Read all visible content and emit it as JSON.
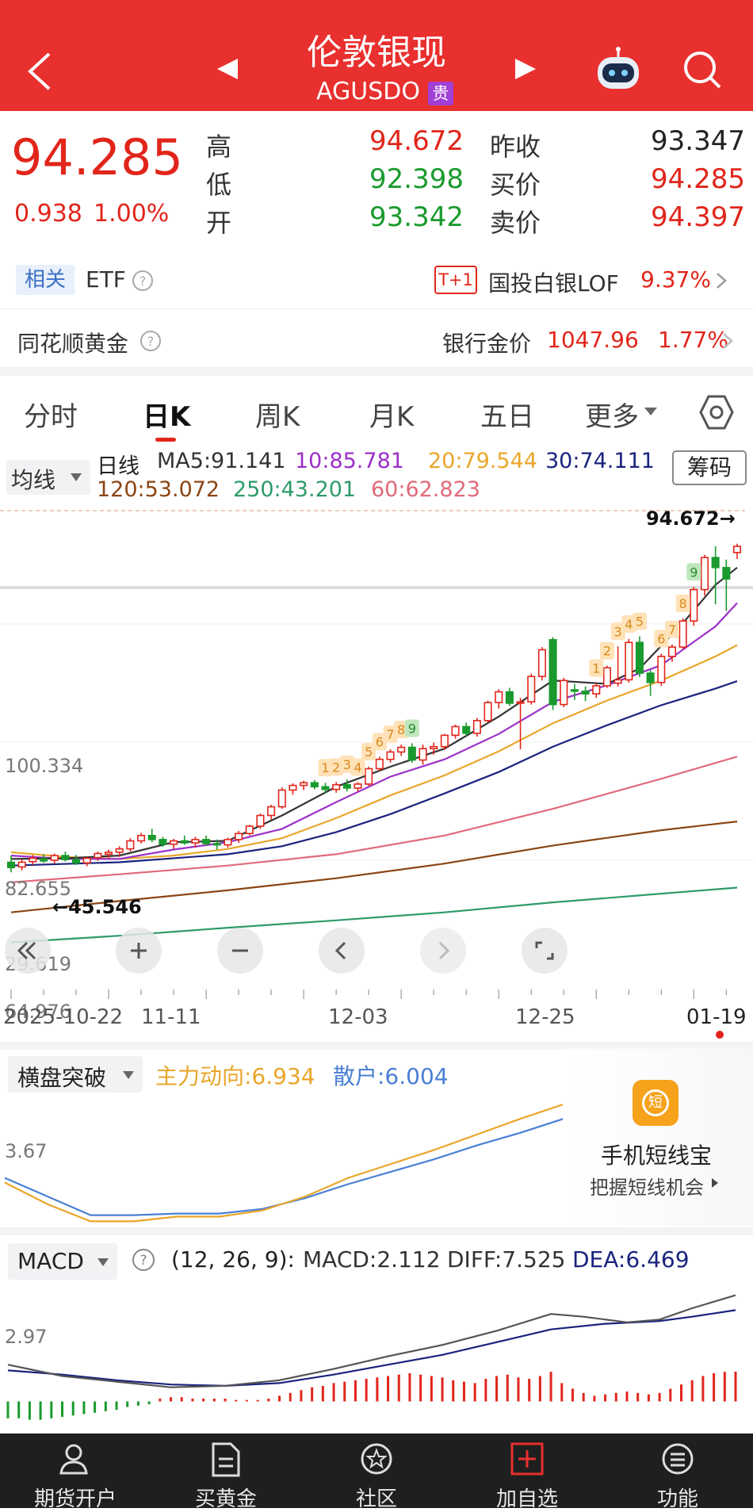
{
  "header": {
    "title": "伦敦银现",
    "code": "AGUSDO",
    "badge": "贵",
    "colors": {
      "bg": "#e8302e",
      "badge": "#a23fd6"
    }
  },
  "quote": {
    "price": "94.285",
    "change": "0.938",
    "change_pct": "1.00%",
    "labels": {
      "high": "高",
      "low": "低",
      "open": "开",
      "prev_close": "昨收",
      "bid": "买价",
      "ask": "卖价"
    },
    "high": "94.672",
    "low": "92.398",
    "open": "93.342",
    "prev_close": "93.347",
    "bid": "94.285",
    "ask": "94.397",
    "colors": {
      "up": "#e1251b",
      "down": "#1a9a2e"
    }
  },
  "related": {
    "tag": "相关",
    "etf": "ETF",
    "t1": "T+1",
    "fund_name": "国投白银LOF",
    "fund_pct": "9.37%"
  },
  "gold": {
    "label": "同花顺黄金",
    "bank_label": "银行金价",
    "bank_price": "1047.96",
    "bank_pct": "1.77%"
  },
  "tabs": [
    "分时",
    "日K",
    "周K",
    "月K",
    "五日",
    "更多"
  ],
  "kchart": {
    "ma_toggle": "均线",
    "period_label": "日线",
    "chip_button": "筹码",
    "ma": [
      {
        "label": "MA5:91.141",
        "color": "#333333"
      },
      {
        "label": "10:85.781",
        "color": "#9b30c8"
      },
      {
        "label": "20:79.544",
        "color": "#e9a62a"
      },
      {
        "label": "30:74.111",
        "color": "#1a237e"
      },
      {
        "label": "120:53.072",
        "color": "#8b4513"
      },
      {
        "label": "250:43.201",
        "color": "#2e9b6a"
      },
      {
        "label": "60:62.823",
        "color": "#e06a7a"
      }
    ],
    "y_labels": [
      "100.334",
      "82.655",
      "64.976",
      "29.619"
    ],
    "high_marker": "94.672→",
    "low_marker": "←45.546",
    "x_labels": [
      "2025-10-22",
      "11-11",
      "12-03",
      "12-25",
      "01-19"
    ]
  },
  "indicator": {
    "name": "横盘突破",
    "main_label": "主力动向:6.934",
    "retail_label": "散户:6.004",
    "y_label": "3.67",
    "promo_title": "手机短线宝",
    "promo_sub": "把握短线机会",
    "promo_icon": "短"
  },
  "macd": {
    "name": "MACD",
    "params": "(12, 26, 9):",
    "macd_val": "MACD:2.112",
    "diff_val": "DIFF:7.525",
    "dea_val": "DEA:6.469",
    "y_label": "2.97"
  },
  "nav": [
    "期货开户",
    "买黄金",
    "社区",
    "加自选",
    "功能"
  ],
  "chart_data": {
    "type": "candlestick",
    "title": "伦敦银现 日线",
    "xlabel": "",
    "ylabel": "",
    "x_ticks": [
      "2025-10-22",
      "11-11",
      "12-03",
      "12-25",
      "01-19"
    ],
    "ylim": [
      29.619,
      100.334
    ],
    "candles": [
      {
        "o": 47.0,
        "h": 48.0,
        "l": 45.5,
        "c": 46.2
      },
      {
        "o": 46.3,
        "h": 47.4,
        "l": 45.8,
        "c": 47.0
      },
      {
        "o": 47.1,
        "h": 48.1,
        "l": 46.6,
        "c": 47.6
      },
      {
        "o": 47.5,
        "h": 48.2,
        "l": 46.9,
        "c": 47.2
      },
      {
        "o": 47.3,
        "h": 48.3,
        "l": 46.8,
        "c": 48.0
      },
      {
        "o": 48.0,
        "h": 48.6,
        "l": 47.1,
        "c": 47.4
      },
      {
        "o": 47.4,
        "h": 48.1,
        "l": 46.6,
        "c": 46.9
      },
      {
        "o": 46.9,
        "h": 47.8,
        "l": 46.4,
        "c": 47.6
      },
      {
        "o": 47.7,
        "h": 48.6,
        "l": 47.2,
        "c": 48.3
      },
      {
        "o": 48.2,
        "h": 48.9,
        "l": 47.6,
        "c": 48.5
      },
      {
        "o": 48.5,
        "h": 49.4,
        "l": 47.8,
        "c": 49.0
      },
      {
        "o": 49.0,
        "h": 50.6,
        "l": 48.6,
        "c": 50.2
      },
      {
        "o": 50.2,
        "h": 51.4,
        "l": 49.8,
        "c": 51.0
      },
      {
        "o": 51.0,
        "h": 52.0,
        "l": 50.0,
        "c": 50.4
      },
      {
        "o": 50.4,
        "h": 50.8,
        "l": 49.3,
        "c": 49.7
      },
      {
        "o": 49.7,
        "h": 50.5,
        "l": 49.0,
        "c": 50.2
      },
      {
        "o": 50.2,
        "h": 51.0,
        "l": 49.6,
        "c": 49.9
      },
      {
        "o": 49.9,
        "h": 50.8,
        "l": 49.2,
        "c": 50.4
      },
      {
        "o": 50.4,
        "h": 51.0,
        "l": 49.5,
        "c": 49.8
      },
      {
        "o": 49.8,
        "h": 50.4,
        "l": 48.9,
        "c": 49.6
      },
      {
        "o": 49.6,
        "h": 50.7,
        "l": 49.2,
        "c": 50.4
      },
      {
        "o": 50.4,
        "h": 51.7,
        "l": 49.9,
        "c": 51.3
      },
      {
        "o": 51.3,
        "h": 52.6,
        "l": 51.0,
        "c": 52.4
      },
      {
        "o": 52.4,
        "h": 54.3,
        "l": 52.0,
        "c": 54.0
      },
      {
        "o": 54.0,
        "h": 55.6,
        "l": 53.4,
        "c": 55.3
      },
      {
        "o": 55.3,
        "h": 58.2,
        "l": 55.0,
        "c": 57.8
      },
      {
        "o": 57.8,
        "h": 58.8,
        "l": 57.1,
        "c": 58.5
      },
      {
        "o": 58.5,
        "h": 59.2,
        "l": 57.8,
        "c": 58.9
      },
      {
        "o": 58.9,
        "h": 59.3,
        "l": 57.9,
        "c": 58.3
      },
      {
        "o": 58.3,
        "h": 58.9,
        "l": 57.3,
        "c": 57.9
      },
      {
        "o": 57.9,
        "h": 59.0,
        "l": 57.4,
        "c": 58.6
      },
      {
        "o": 58.6,
        "h": 59.4,
        "l": 57.6,
        "c": 58.1
      },
      {
        "o": 58.1,
        "h": 59.0,
        "l": 57.6,
        "c": 58.7
      },
      {
        "o": 58.7,
        "h": 61.3,
        "l": 58.4,
        "c": 61.0
      },
      {
        "o": 61.0,
        "h": 62.8,
        "l": 60.6,
        "c": 62.4
      },
      {
        "o": 62.4,
        "h": 63.9,
        "l": 61.9,
        "c": 63.5
      },
      {
        "o": 63.5,
        "h": 64.6,
        "l": 62.9,
        "c": 64.2
      },
      {
        "o": 64.2,
        "h": 64.8,
        "l": 61.9,
        "c": 62.3
      },
      {
        "o": 62.3,
        "h": 64.6,
        "l": 61.6,
        "c": 64.0
      },
      {
        "o": 64.0,
        "h": 64.9,
        "l": 63.1,
        "c": 64.3
      },
      {
        "o": 64.3,
        "h": 66.2,
        "l": 63.8,
        "c": 66.0
      },
      {
        "o": 66.0,
        "h": 67.6,
        "l": 65.5,
        "c": 67.3
      },
      {
        "o": 67.3,
        "h": 67.9,
        "l": 65.9,
        "c": 66.3
      },
      {
        "o": 66.3,
        "h": 68.6,
        "l": 65.8,
        "c": 68.2
      },
      {
        "o": 68.2,
        "h": 71.2,
        "l": 67.9,
        "c": 70.9
      },
      {
        "o": 70.9,
        "h": 72.9,
        "l": 70.0,
        "c": 72.5
      },
      {
        "o": 72.5,
        "h": 73.1,
        "l": 70.4,
        "c": 70.8
      },
      {
        "o": 70.8,
        "h": 71.6,
        "l": 63.9,
        "c": 71.0
      },
      {
        "o": 71.0,
        "h": 75.2,
        "l": 70.6,
        "c": 74.8
      },
      {
        "o": 74.8,
        "h": 79.2,
        "l": 74.2,
        "c": 78.8
      },
      {
        "o": 80.3,
        "h": 80.7,
        "l": 69.8,
        "c": 70.6
      },
      {
        "o": 70.6,
        "h": 74.6,
        "l": 70.2,
        "c": 74.2
      },
      {
        "o": 72.8,
        "h": 73.7,
        "l": 71.3,
        "c": 72.6
      },
      {
        "o": 72.6,
        "h": 73.3,
        "l": 71.1,
        "c": 72.2
      },
      {
        "o": 72.2,
        "h": 73.8,
        "l": 71.6,
        "c": 73.4
      },
      {
        "o": 73.4,
        "h": 76.4,
        "l": 73.1,
        "c": 76.1
      },
      {
        "o": 73.8,
        "h": 79.3,
        "l": 73.3,
        "c": 74.3
      },
      {
        "o": 74.3,
        "h": 80.4,
        "l": 73.9,
        "c": 79.9
      },
      {
        "o": 79.9,
        "h": 80.8,
        "l": 74.7,
        "c": 75.3
      },
      {
        "o": 75.3,
        "h": 75.8,
        "l": 71.9,
        "c": 73.9
      },
      {
        "o": 73.9,
        "h": 78.2,
        "l": 73.4,
        "c": 77.8
      },
      {
        "o": 77.8,
        "h": 79.6,
        "l": 77.0,
        "c": 79.2
      },
      {
        "o": 79.2,
        "h": 83.5,
        "l": 78.8,
        "c": 83.1
      },
      {
        "o": 83.1,
        "h": 88.2,
        "l": 82.4,
        "c": 87.8
      },
      {
        "o": 87.8,
        "h": 93.0,
        "l": 86.9,
        "c": 92.6
      },
      {
        "o": 92.6,
        "h": 94.3,
        "l": 85.6,
        "c": 91.1
      },
      {
        "o": 91.1,
        "h": 92.3,
        "l": 84.6,
        "c": 89.4
      },
      {
        "o": 93.342,
        "h": 94.672,
        "l": 92.398,
        "c": 94.285
      }
    ],
    "td_labels": [
      {
        "i": 29,
        "t": "1"
      },
      {
        "i": 30,
        "t": "2"
      },
      {
        "i": 31,
        "t": "3"
      },
      {
        "i": 32,
        "t": "4"
      },
      {
        "i": 33,
        "t": "5"
      },
      {
        "i": 34,
        "t": "6"
      },
      {
        "i": 35,
        "t": "7"
      },
      {
        "i": 36,
        "t": "8"
      },
      {
        "i": 37,
        "t": "9"
      },
      {
        "i": 54,
        "t": "1"
      },
      {
        "i": 55,
        "t": "2"
      },
      {
        "i": 56,
        "t": "3"
      },
      {
        "i": 57,
        "t": "4"
      },
      {
        "i": 58,
        "t": "5"
      },
      {
        "i": 60,
        "t": "6"
      },
      {
        "i": 61,
        "t": "7"
      },
      {
        "i": 62,
        "t": "8"
      },
      {
        "i": 63,
        "t": "9"
      }
    ],
    "ma_lines": {
      "ma5": [
        [
          0,
          47.5
        ],
        [
          5,
          47.6
        ],
        [
          10,
          48.0
        ],
        [
          15,
          50.0
        ],
        [
          20,
          50.2
        ],
        [
          25,
          54.0
        ],
        [
          30,
          58.3
        ],
        [
          35,
          61.3
        ],
        [
          40,
          64.0
        ],
        [
          45,
          68.8
        ],
        [
          50,
          74.2
        ],
        [
          55,
          73.7
        ],
        [
          58,
          76.0
        ],
        [
          62,
          82.8
        ],
        [
          65,
          88.5
        ],
        [
          67,
          91.1
        ]
      ],
      "ma10": [
        [
          0,
          48.0
        ],
        [
          5,
          47.5
        ],
        [
          10,
          47.5
        ],
        [
          15,
          48.9
        ],
        [
          20,
          50.0
        ],
        [
          25,
          52.0
        ],
        [
          30,
          56.0
        ],
        [
          35,
          59.8
        ],
        [
          40,
          62.4
        ],
        [
          45,
          66.2
        ],
        [
          50,
          71.0
        ],
        [
          55,
          73.5
        ],
        [
          60,
          76.5
        ],
        [
          65,
          82.3
        ],
        [
          67,
          85.8
        ]
      ],
      "ma20": [
        [
          0,
          48.5
        ],
        [
          5,
          47.8
        ],
        [
          10,
          47.5
        ],
        [
          15,
          48.0
        ],
        [
          20,
          49.0
        ],
        [
          25,
          50.6
        ],
        [
          30,
          53.6
        ],
        [
          35,
          57.0
        ],
        [
          40,
          60.0
        ],
        [
          45,
          63.6
        ],
        [
          50,
          67.8
        ],
        [
          55,
          71.2
        ],
        [
          60,
          74.2
        ],
        [
          65,
          77.8
        ],
        [
          67,
          79.5
        ]
      ],
      "ma30": [
        [
          0,
          46.5
        ],
        [
          10,
          47.0
        ],
        [
          20,
          48.2
        ],
        [
          25,
          49.4
        ],
        [
          30,
          51.5
        ],
        [
          35,
          54.2
        ],
        [
          40,
          57.3
        ],
        [
          45,
          60.5
        ],
        [
          50,
          64.3
        ],
        [
          55,
          67.5
        ],
        [
          60,
          70.5
        ],
        [
          65,
          73.0
        ],
        [
          67,
          74.1
        ]
      ],
      "ma60": [
        [
          0,
          44.0
        ],
        [
          10,
          45.2
        ],
        [
          20,
          46.5
        ],
        [
          30,
          48.2
        ],
        [
          40,
          51.0
        ],
        [
          50,
          55.0
        ],
        [
          60,
          59.5
        ],
        [
          67,
          62.8
        ]
      ],
      "ma120": [
        [
          0,
          39.5
        ],
        [
          10,
          41.2
        ],
        [
          20,
          42.8
        ],
        [
          30,
          44.6
        ],
        [
          40,
          46.8
        ],
        [
          50,
          49.5
        ],
        [
          60,
          51.8
        ],
        [
          67,
          53.1
        ]
      ],
      "ma250": [
        [
          0,
          35.0
        ],
        [
          10,
          36.0
        ],
        [
          20,
          37.2
        ],
        [
          30,
          38.3
        ],
        [
          40,
          39.5
        ],
        [
          50,
          41.0
        ],
        [
          60,
          42.3
        ],
        [
          67,
          43.2
        ]
      ]
    },
    "indicator_series": {
      "main": [
        [
          0,
          1.9
        ],
        [
          4,
          0.5
        ],
        [
          8,
          -0.6
        ],
        [
          12,
          -0.6
        ],
        [
          16,
          -0.3
        ],
        [
          20,
          -0.3
        ],
        [
          24,
          0.1
        ],
        [
          28,
          1.0
        ],
        [
          32,
          2.2
        ],
        [
          36,
          3.1
        ],
        [
          40,
          4.0
        ],
        [
          44,
          5.0
        ],
        [
          48,
          6.0
        ],
        [
          52,
          6.934
        ]
      ],
      "retail": [
        [
          0,
          2.2
        ],
        [
          4,
          1.0
        ],
        [
          8,
          -0.2
        ],
        [
          12,
          -0.2
        ],
        [
          16,
          -0.1
        ],
        [
          20,
          -0.1
        ],
        [
          24,
          0.2
        ],
        [
          28,
          0.9
        ],
        [
          32,
          1.8
        ],
        [
          36,
          2.6
        ],
        [
          40,
          3.4
        ],
        [
          44,
          4.3
        ],
        [
          48,
          5.1
        ],
        [
          52,
          6.004
        ]
      ]
    },
    "macd_series": {
      "diff": [
        [
          0,
          2.6
        ],
        [
          5,
          1.8
        ],
        [
          10,
          1.4
        ],
        [
          15,
          1.0
        ],
        [
          20,
          1.1
        ],
        [
          25,
          1.5
        ],
        [
          30,
          2.3
        ],
        [
          35,
          3.2
        ],
        [
          40,
          4.0
        ],
        [
          45,
          5.0
        ],
        [
          50,
          6.2
        ],
        [
          53,
          6.0
        ],
        [
          57,
          5.6
        ],
        [
          60,
          5.8
        ],
        [
          63,
          6.6
        ],
        [
          67,
          7.525
        ]
      ],
      "dea": [
        [
          0,
          2.2
        ],
        [
          5,
          1.9
        ],
        [
          10,
          1.5
        ],
        [
          15,
          1.2
        ],
        [
          20,
          1.1
        ],
        [
          25,
          1.3
        ],
        [
          30,
          1.9
        ],
        [
          35,
          2.6
        ],
        [
          40,
          3.3
        ],
        [
          45,
          4.2
        ],
        [
          50,
          5.1
        ],
        [
          55,
          5.5
        ],
        [
          60,
          5.7
        ],
        [
          63,
          6.0
        ],
        [
          67,
          6.469
        ]
      ],
      "hist": [
        -1.2,
        -1.2,
        -1.3,
        -1.3,
        -1.2,
        -1.1,
        -1.0,
        -0.9,
        -0.8,
        -0.7,
        -0.6,
        -0.4,
        -0.3,
        -0.2,
        0.2,
        0.3,
        0.3,
        0.2,
        0.2,
        0.2,
        0.2,
        0.1,
        0.1,
        0.1,
        0.2,
        0.4,
        0.6,
        0.8,
        1.0,
        1.1,
        1.3,
        1.4,
        1.5,
        1.6,
        1.7,
        1.8,
        1.9,
        2.0,
        1.9,
        1.8,
        1.7,
        1.5,
        1.4,
        1.3,
        1.6,
        1.8,
        1.9,
        1.7,
        1.6,
        1.8,
        2.1,
        1.3,
        0.9,
        0.6,
        0.4,
        0.5,
        0.6,
        0.7,
        0.6,
        0.5,
        0.6,
        0.9,
        1.2,
        1.5,
        1.8,
        2.0,
        2.1,
        2.112
      ]
    }
  }
}
